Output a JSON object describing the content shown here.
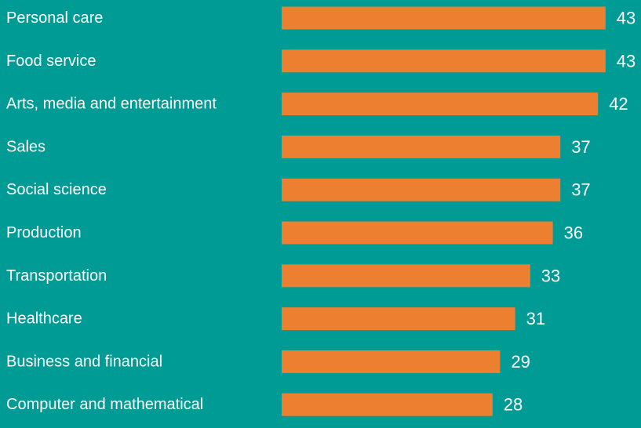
{
  "colors": {
    "background": "#009b94",
    "bar": "#ec8030",
    "text": "#ffffff"
  },
  "chart_data": {
    "type": "bar",
    "orientation": "horizontal",
    "title": "",
    "xlabel": "",
    "ylabel": "",
    "grid": false,
    "legend": "none",
    "xlim": [
      0,
      43
    ],
    "categories": [
      "Personal care",
      "Food service",
      "Arts, media and entertainment",
      "Sales",
      "Social science",
      "Production",
      "Transportation",
      "Healthcare",
      "Business and financial",
      "Computer and mathematical"
    ],
    "values": [
      43,
      43,
      42,
      37,
      37,
      36,
      33,
      31,
      29,
      28
    ]
  }
}
